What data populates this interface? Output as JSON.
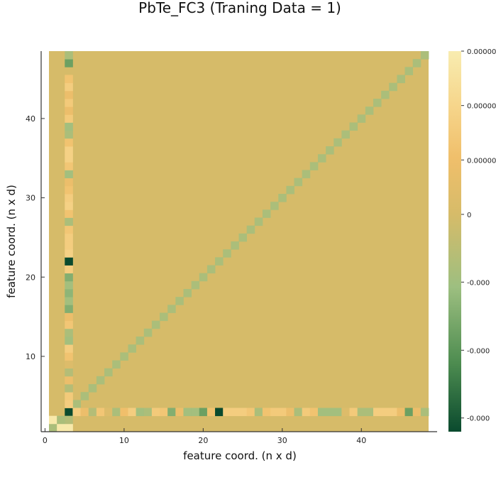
{
  "chart_data": {
    "type": "heatmap",
    "title": "PbTe_FC3 (Traning Data = 1)",
    "xlabel": "feature coord. (n x d)",
    "ylabel": "feature coord. (n x d)",
    "xlim": [
      0.5,
      48.5
    ],
    "ylim": [
      0.5,
      48.5
    ],
    "n": 48,
    "x_ticks": [
      0,
      10,
      20,
      30,
      40
    ],
    "x_tick_labels": [
      "0",
      "10",
      "20",
      "30",
      "40"
    ],
    "y_ticks": [
      10,
      20,
      30,
      40
    ],
    "y_tick_labels": [
      "10",
      "20",
      "30",
      "40"
    ],
    "grid": false,
    "background_value": 0,
    "colorbar": {
      "tick_labels": [
        "0.00000",
        "0.00000",
        "0.00000",
        "0",
        "-0.000",
        "-0.000",
        "-0.000"
      ],
      "tick_fractions": [
        1.0,
        0.857,
        0.714,
        0.571,
        0.393,
        0.214,
        0.036
      ],
      "colors": [
        "#0a4a2e",
        "#4d8c50",
        "#9dbf80",
        "#d6bb69",
        "#f0bf6b",
        "#f6d68c",
        "#f8ecb0"
      ],
      "color_stops": [
        0.0,
        0.18,
        0.38,
        0.571,
        0.72,
        0.86,
        1.0
      ]
    },
    "diagonal_value": -0.25,
    "diagonal_start": 4,
    "row3_values": [
      0.95,
      0.85,
      -1.0,
      0.55,
      0.3,
      -0.2,
      0.45,
      0.1,
      -0.25,
      0.35,
      0.55,
      -0.3,
      -0.25,
      0.5,
      0.45,
      -0.45,
      0.3,
      -0.3,
      -0.3,
      -0.55,
      0.4,
      -1.0,
      0.55,
      0.55,
      0.55,
      0.45,
      -0.25,
      0.4,
      0.5,
      0.5,
      0.3,
      -0.25,
      0.5,
      0.4,
      -0.3,
      -0.3,
      -0.3,
      0.1,
      0.5,
      -0.25,
      -0.25,
      0.55,
      0.55,
      0.55,
      0.3,
      -0.55,
      0.3,
      -0.25
    ],
    "col3_values": [
      0.95,
      -0.2,
      -1.0,
      0.55,
      0.5,
      -0.2,
      0.3,
      -0.2,
      0.1,
      0.4,
      0.55,
      -0.3,
      -0.25,
      0.45,
      0.3,
      -0.45,
      -0.3,
      -0.4,
      -0.3,
      -0.45,
      0.55,
      -1.0,
      0.6,
      0.55,
      0.55,
      0.45,
      -0.25,
      0.4,
      0.6,
      0.55,
      0.4,
      0.3,
      -0.3,
      0.45,
      0.6,
      0.6,
      0.4,
      -0.25,
      -0.3,
      0.5,
      0.3,
      0.5,
      0.3,
      0.55,
      0.4,
      0.0,
      -0.55,
      -0.25
    ],
    "col1_values": [
      -0.25,
      0.95,
      0.0
    ],
    "col2_values": [
      0.95,
      -0.25,
      0.0
    ]
  }
}
